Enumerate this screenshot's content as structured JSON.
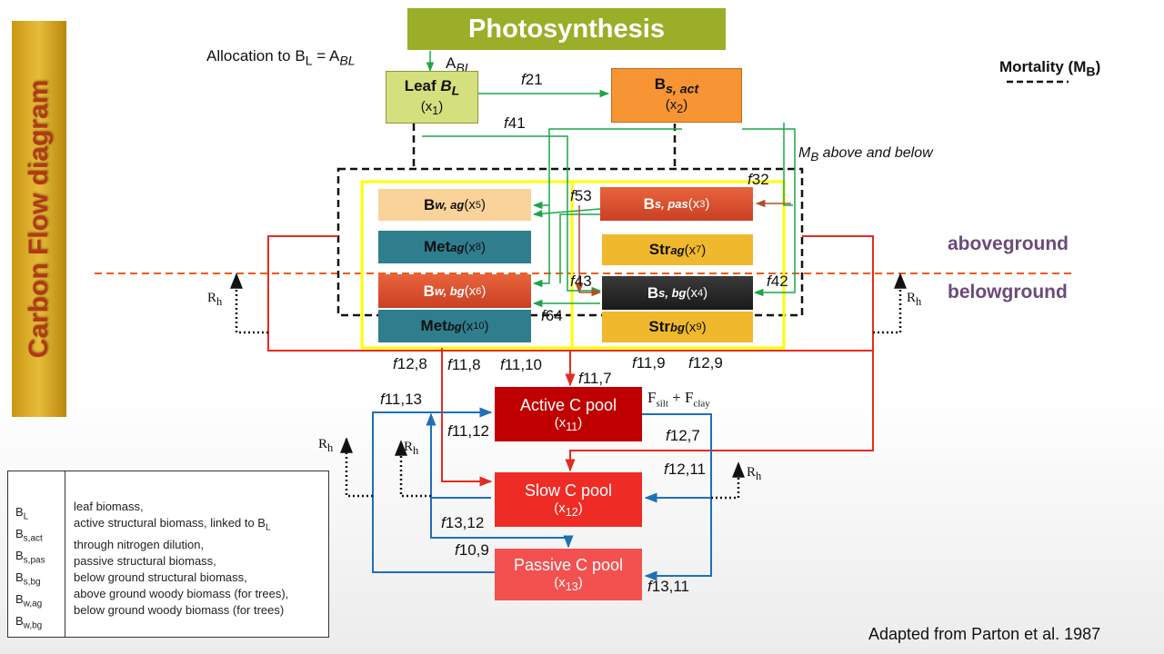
{
  "sidebar_title": "Carbon Flow diagram",
  "title": "Photosynthesis",
  "allocation_label": "Allocation to B",
  "allocation_sub": "L",
  "allocation_eq": " = A",
  "allocation_eq_sub": "BL",
  "abl_label": "A",
  "abl_sub": "BL",
  "mortality": {
    "label": "Mortality  (M",
    "sub": "B",
    "close": ")"
  },
  "mb_note": {
    "main": "M",
    "sub": "B",
    "rest": " above and below"
  },
  "zones": {
    "above": "aboveground",
    "below": "belowground"
  },
  "rh_label": "R",
  "rh_sub": "h",
  "boxes": {
    "leaf": {
      "name": "Leaf ",
      "name_it": "B",
      "sub": "L",
      "var": "(x",
      "var_sub": "1",
      "var_close": ")"
    },
    "bsact": {
      "name": "B",
      "sub": "s, act",
      "var": "(x",
      "var_sub": "2",
      "var_close": ")"
    },
    "bwag": {
      "name": "B",
      "sub": "w, ag",
      "var": " (x",
      "var_sub": "5",
      "var_close": ")"
    },
    "bspas": {
      "name": "B",
      "sub": "s, pas",
      "var": " (x",
      "var_sub": "3",
      "var_close": ")"
    },
    "metag": {
      "name": "Met",
      "sub": "ag",
      "var": " (x",
      "var_sub": "8",
      "var_close": ")"
    },
    "strag": {
      "name": "Str",
      "sub": "ag",
      "var": " (x",
      "var_sub": "7",
      "var_close": ")"
    },
    "bwbg": {
      "name": "B",
      "sub": "w, bg",
      "var": " (x",
      "var_sub": "6",
      "var_close": ")"
    },
    "bsbg": {
      "name": "B",
      "sub": "s, bg",
      "var": " (x",
      "var_sub": "4",
      "var_close": ")"
    },
    "metbg": {
      "name": "Met",
      "sub": "bg",
      "var": " (x",
      "var_sub": "10",
      "var_close": ")"
    },
    "strbg": {
      "name": "Str",
      "sub": "bg",
      "var": " (x",
      "var_sub": "9",
      "var_close": ")"
    },
    "active": {
      "name": "Active C pool",
      "var": "(x",
      "var_sub": "11",
      "var_close": ")"
    },
    "slow": {
      "name": "Slow C pool",
      "var": "(x",
      "var_sub": "12",
      "var_close": ")"
    },
    "passive": {
      "name": "Passive C pool",
      "var": "(x",
      "var_sub": "13",
      "var_close": ")"
    }
  },
  "fluxes": {
    "f21": "21",
    "f41": "41",
    "f32": "32",
    "f53": "53",
    "f43": "43",
    "f42": "42",
    "f64": "64",
    "f12_8": "12,8",
    "f11_8": "11,8",
    "f11_10": "11,10",
    "f11_7": "11,7",
    "f11_9": "11,9",
    "f12_9": "12,9",
    "f11_13": "11,13",
    "f11_12": "11,12",
    "f12_7": "12,7",
    "f12_11": "12,11",
    "f13_12": "13,12",
    "f10_9": "10,9",
    "f13_11": "13,11",
    "prefix": "f"
  },
  "fsilt": {
    "F": "F",
    "silt": "silt",
    "plus": " + F",
    "clay": "clay"
  },
  "legend": {
    "symbols": [
      {
        "main": "B",
        "sub": "L"
      },
      {
        "main": "B",
        "sub": "s,act"
      },
      {
        "main": "B",
        "sub": "s,pas"
      },
      {
        "main": "B",
        "sub": "s,bg"
      },
      {
        "main": "B",
        "sub": "w,ag"
      },
      {
        "main": "B",
        "sub": "w,bg"
      }
    ],
    "defs": [
      "leaf biomass,",
      "active structural biomass, linked to B",
      "through nitrogen dilution,",
      "passive structural biomass,",
      "below ground structural biomass,",
      "above ground woody biomass (for trees),",
      "below ground woody biomass (for trees)"
    ],
    "def_sub": "L"
  },
  "credit": "Adapted from Parton et al. 1987",
  "colors": {
    "green": "#1aa64a",
    "red": "#e52b1f",
    "blue": "#1f6fb8",
    "yellow": "#ffff00",
    "purple": "#6b4a7a"
  }
}
